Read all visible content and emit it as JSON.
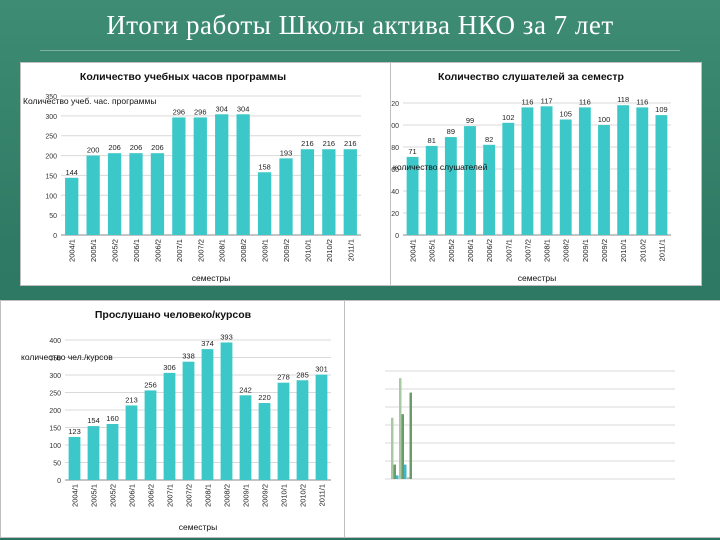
{
  "page": {
    "title": "Итоги работы Школы актива НКО за 7 лет"
  },
  "colors": {
    "bar": "#3cc8c8",
    "bar_dark": "#2bb2b2",
    "grid": "#d9d9d9",
    "mini_green_dark": "#6b9b6b",
    "mini_green_light": "#a9c9a3",
    "mini_teal": "#41b6c4"
  },
  "chart_data": [
    {
      "id": "hours",
      "type": "bar",
      "title": "Количество учебных часов программы",
      "ylabel": "Количество учеб. час. программы",
      "xlabel": "семестры",
      "ylim": [
        0,
        350
      ],
      "yticks": [
        0,
        50,
        100,
        150,
        200,
        250,
        300,
        350
      ],
      "grid": true,
      "categories": [
        "2004/1",
        "2005/1",
        "2005/2",
        "2006/1",
        "2006/2",
        "2007/1",
        "2007/2",
        "2008/1",
        "2008/2",
        "2009/1",
        "2009/2",
        "2010/1",
        "2010/2",
        "2011/1"
      ],
      "values": [
        144,
        200,
        206,
        206,
        206,
        296,
        296,
        304,
        304,
        158,
        193,
        216,
        216,
        216
      ],
      "labels": [
        "144",
        "200",
        "206",
        "206",
        "206",
        "296",
        "296",
        "304",
        "304",
        "158",
        "193",
        "216",
        "216",
        "216"
      ]
    },
    {
      "id": "students",
      "type": "bar",
      "title": "Количество слушателей за семестр",
      "ylabel": "количество слушателей",
      "xlabel": "семестры",
      "ylim": [
        0,
        120
      ],
      "yticks": [
        0,
        20,
        40,
        60,
        80,
        100,
        120
      ],
      "ytick_labels": [
        "0",
        "20",
        "40",
        "60",
        "80",
        "100",
        "120"
      ],
      "grid": true,
      "categories": [
        "2004/1",
        "2005/1",
        "2005/2",
        "2006/1",
        "2006/2",
        "2007/1",
        "2007/2",
        "2008/1",
        "2008/2",
        "2009/1",
        "2009/2",
        "2010/1",
        "2010/2",
        "2011/1"
      ],
      "values": [
        71,
        81,
        89,
        99,
        82,
        102,
        116,
        117,
        105,
        116,
        100,
        118,
        116,
        109
      ],
      "labels": [
        "71",
        "81",
        "89",
        "99",
        "82",
        "102",
        "116",
        "117",
        "105",
        "116",
        "100",
        "118",
        "116",
        "109"
      ]
    },
    {
      "id": "people",
      "type": "bar",
      "title": "Прослушано человеко/курсов",
      "ylabel": "количество чел./курсов",
      "xlabel": "семестры",
      "ylim": [
        0,
        400
      ],
      "yticks": [
        0,
        50,
        100,
        150,
        200,
        250,
        300,
        350,
        400
      ],
      "grid": true,
      "categories": [
        "2004/1",
        "2005/1",
        "2005/2",
        "2006/1",
        "2006/2",
        "2007/1",
        "2007/2",
        "2008/1",
        "2008/2",
        "2009/1",
        "2009/2",
        "2010/1",
        "2010/2",
        "2011/1"
      ],
      "values": [
        123,
        154,
        160,
        213,
        256,
        306,
        338,
        374,
        393,
        242,
        220,
        278,
        285,
        301
      ],
      "labels": [
        "123",
        "154",
        "160",
        "213",
        "256",
        "306",
        "338",
        "374",
        "393",
        "242",
        "220",
        "278",
        "285",
        "301"
      ]
    },
    {
      "id": "mini",
      "type": "bar",
      "title": "",
      "grid": true,
      "ylim": [
        0,
        300
      ],
      "series": [
        {
          "values": [
            170,
            280,
            5
          ],
          "color": "mini_green_light"
        },
        {
          "values": [
            40,
            180,
            240
          ],
          "color": "mini_green_dark"
        },
        {
          "values": [
            10,
            40,
            0
          ],
          "color": "mini_teal"
        }
      ]
    }
  ]
}
